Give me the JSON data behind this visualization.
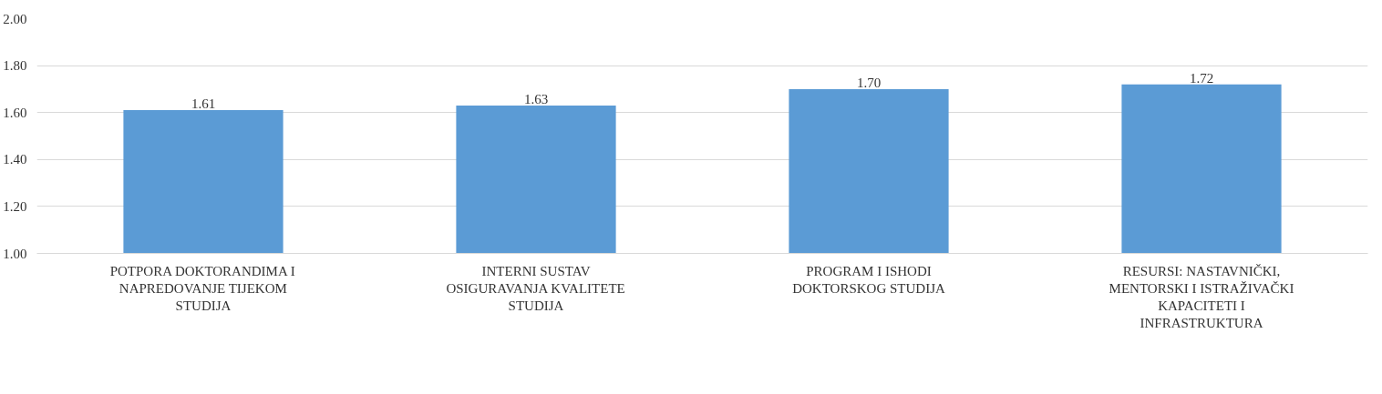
{
  "chart_data": {
    "type": "bar",
    "categories": [
      "POTPORA DOKTORANDIMA I NAPREDOVANJE TIJEKOM STUDIJA",
      "INTERNI SUSTAV OSIGURAVANJA KVALITETE STUDIJA",
      "PROGRAM I ISHODI DOKTORSKOG STUDIJA",
      "RESURSI: NASTAVNIČKI, MENTORSKI I ISTRAŽIVAČKI KAPACITETI I INFRASTRUKTURA"
    ],
    "values": [
      1.61,
      1.63,
      1.7,
      1.72
    ],
    "color": "#5b9bd5",
    "ylim": [
      1.0,
      2.0
    ],
    "yticks": [
      {
        "value": 1.0,
        "label": "1.00"
      },
      {
        "value": 1.2,
        "label": "1.20"
      },
      {
        "value": 1.4,
        "label": "1.40"
      },
      {
        "value": 1.6,
        "label": "1.60"
      },
      {
        "value": 1.8,
        "label": "1.80"
      },
      {
        "value": 2.0,
        "label": "2.00"
      }
    ],
    "grid": "y",
    "value_labels": [
      "1.61",
      "1.63",
      "1.70",
      "1.72"
    ]
  }
}
